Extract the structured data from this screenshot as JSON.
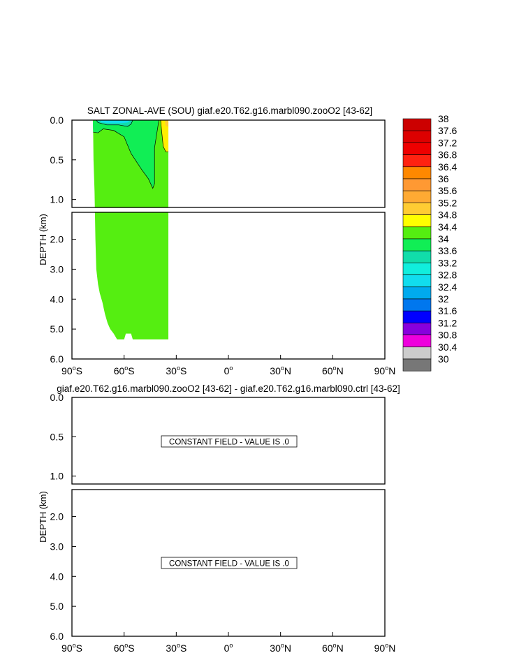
{
  "chart_data": [
    {
      "type": "heatmap",
      "title": "SALT ZONAL-AVE (SOU) giaf.e20.T62.g16.marbl090.zooO2 [43-62]",
      "ylabel": "DEPTH (km)",
      "xlim": [
        -90,
        90
      ],
      "ylim": [
        0,
        6
      ],
      "y_breakpoint_km": 1.1,
      "y_ticks": [
        {
          "label": "0.0",
          "value": 0.0
        },
        {
          "label": "0.5",
          "value": 0.5
        },
        {
          "label": "1.0",
          "value": 1.0
        },
        {
          "label": "2.0",
          "value": 2.0
        },
        {
          "label": "3.0",
          "value": 3.0
        },
        {
          "label": "4.0",
          "value": 4.0
        },
        {
          "label": "5.0",
          "value": 5.0
        },
        {
          "label": "6.0",
          "value": 6.0
        }
      ],
      "x_ticks": [
        {
          "deg": "90",
          "hemi": "S",
          "value": -90
        },
        {
          "deg": "60",
          "hemi": "S",
          "value": -60
        },
        {
          "deg": "30",
          "hemi": "S",
          "value": -30
        },
        {
          "deg": "0",
          "hemi": "",
          "value": 0
        },
        {
          "deg": "30",
          "hemi": "N",
          "value": 30
        },
        {
          "deg": "60",
          "hemi": "N",
          "value": 60
        },
        {
          "deg": "90",
          "hemi": "N",
          "value": 90
        }
      ],
      "ocean_mask": {
        "lat_north": -34.5,
        "bottom_profile": [
          {
            "lat": -78.0,
            "depth": 0.0
          },
          {
            "lat": -77.8,
            "depth": 0.15
          },
          {
            "lat": -77.6,
            "depth": 0.5
          },
          {
            "lat": -77.0,
            "depth": 0.9
          },
          {
            "lat": -76.5,
            "depth": 2.0
          },
          {
            "lat": -76.0,
            "depth": 3.0
          },
          {
            "lat": -75.0,
            "depth": 3.5
          },
          {
            "lat": -74.0,
            "depth": 3.8
          },
          {
            "lat": -72.5,
            "depth": 4.1
          },
          {
            "lat": -71.0,
            "depth": 4.5
          },
          {
            "lat": -69.5,
            "depth": 4.8
          },
          {
            "lat": -68.0,
            "depth": 5.0
          },
          {
            "lat": -66.0,
            "depth": 5.15
          },
          {
            "lat": -64.0,
            "depth": 5.35
          },
          {
            "lat": -60.0,
            "depth": 5.35
          },
          {
            "lat": -59.0,
            "depth": 5.15
          },
          {
            "lat": -56.0,
            "depth": 5.15
          },
          {
            "lat": -55.0,
            "depth": 5.35
          },
          {
            "lat": -34.5,
            "depth": 5.35
          }
        ]
      },
      "fill_regions": [
        {
          "name": "salinity-34.4-34.8",
          "color": "#55EE11",
          "points": [
            [
              -78,
              0
            ],
            [
              -34.5,
              0
            ],
            [
              -34.5,
              5.35
            ],
            [
              -78,
              5.35
            ]
          ]
        },
        {
          "name": "salinity-34.0-34.4",
          "color": "#11EE55",
          "points": [
            [
              -77,
              0
            ],
            [
              -78,
              0.02
            ],
            [
              -78,
              0.15
            ],
            [
              -75,
              0.16
            ],
            [
              -72,
              0.11
            ],
            [
              -66,
              0.13
            ],
            [
              -60,
              0.21
            ],
            [
              -56,
              0.42
            ],
            [
              -50,
              0.62
            ],
            [
              -46,
              0.74
            ],
            [
              -43.5,
              0.86
            ],
            [
              -42.5,
              0.8
            ],
            [
              -42.5,
              0.35
            ],
            [
              -40,
              0.0
            ]
          ]
        },
        {
          "name": "salinity-33.6-34.0",
          "color": "#11DDAA",
          "points": [
            [
              -76,
              0
            ],
            [
              -75,
              0.03
            ],
            [
              -70,
              0.06
            ],
            [
              -63,
              0.06
            ],
            [
              -58,
              0.08
            ],
            [
              -56,
              0.05
            ],
            [
              -55,
              0.0
            ]
          ]
        },
        {
          "name": "salinity-33.2-33.6",
          "color": "#11DDEE",
          "points": [
            [
              -74,
              0
            ],
            [
              -73,
              0.03
            ],
            [
              -68,
              0.04
            ],
            [
              -62,
              0.04
            ],
            [
              -58,
              0.03
            ],
            [
              -56,
              0.0
            ]
          ]
        },
        {
          "name": "salinity-34.8-35.2",
          "color": "#FFEE00",
          "points": [
            [
              -39,
              0
            ],
            [
              -38.5,
              0.12
            ],
            [
              -37.5,
              0.33
            ],
            [
              -36,
              0.4
            ],
            [
              -34.5,
              0.4
            ],
            [
              -34.5,
              0.0
            ]
          ]
        },
        {
          "name": "salinity-35.2-35.6",
          "color": "#FFCC33",
          "points": [
            [
              -36.5,
              0
            ],
            [
              -36.3,
              0.06
            ],
            [
              -35.5,
              0.08
            ],
            [
              -34.5,
              0.08
            ],
            [
              -34.5,
              0.0
            ]
          ]
        }
      ],
      "contour_lines": [
        [
          [
            -78,
            0.15
          ],
          [
            -75,
            0.16
          ],
          [
            -72,
            0.11
          ],
          [
            -66,
            0.13
          ],
          [
            -60,
            0.21
          ],
          [
            -56,
            0.42
          ],
          [
            -50,
            0.62
          ],
          [
            -46,
            0.74
          ],
          [
            -43.5,
            0.86
          ],
          [
            -42.5,
            0.8
          ],
          [
            -42.5,
            0.35
          ],
          [
            -40,
            0.0
          ]
        ],
        [
          [
            -76,
            0
          ],
          [
            -75,
            0.03
          ],
          [
            -70,
            0.06
          ],
          [
            -63,
            0.06
          ],
          [
            -58,
            0.08
          ],
          [
            -56,
            0.05
          ],
          [
            -55,
            0.0
          ]
        ],
        [
          [
            -39,
            0
          ],
          [
            -38.5,
            0.12
          ],
          [
            -37.5,
            0.33
          ],
          [
            -36,
            0.4
          ],
          [
            -34.5,
            0.4
          ]
        ]
      ],
      "colorbar": {
        "levels": [
          "38",
          "37.6",
          "37.2",
          "36.8",
          "36.4",
          "36",
          "35.6",
          "35.2",
          "34.8",
          "34.4",
          "34",
          "33.6",
          "33.2",
          "32.8",
          "32.4",
          "32",
          "31.6",
          "31.2",
          "30.8",
          "30.4",
          "30"
        ],
        "colors": [
          "#CC0000",
          "#DD0000",
          "#EE0000",
          "#FF2211",
          "#FF8800",
          "#FF9933",
          "#FFAA33",
          "#FFCC33",
          "#FFFF00",
          "#55EE11",
          "#11EE55",
          "#11DDAA",
          "#11EEDD",
          "#11DDEE",
          "#00AAEE",
          "#0077EE",
          "#0000FF",
          "#8800DD",
          "#EE00DD",
          "#CCCCCC",
          "#777777"
        ]
      }
    },
    {
      "type": "heatmap",
      "title": "giaf.e20.T62.g16.marbl090.zooO2 [43-62] - giaf.e20.T62.g16.marbl090.ctrl [43-62]",
      "ylabel": "DEPTH (km)",
      "xlim": [
        -90,
        90
      ],
      "ylim": [
        0,
        6
      ],
      "y_breakpoint_km": 1.1,
      "y_ticks": [
        {
          "label": "0.0",
          "value": 0.0
        },
        {
          "label": "0.5",
          "value": 0.5
        },
        {
          "label": "1.0",
          "value": 1.0
        },
        {
          "label": "2.0",
          "value": 2.0
        },
        {
          "label": "3.0",
          "value": 3.0
        },
        {
          "label": "4.0",
          "value": 4.0
        },
        {
          "label": "5.0",
          "value": 5.0
        },
        {
          "label": "6.0",
          "value": 6.0
        }
      ],
      "x_ticks": [
        {
          "deg": "90",
          "hemi": "S",
          "value": -90
        },
        {
          "deg": "60",
          "hemi": "S",
          "value": -60
        },
        {
          "deg": "30",
          "hemi": "S",
          "value": -30
        },
        {
          "deg": "0",
          "hemi": "",
          "value": 0
        },
        {
          "deg": "30",
          "hemi": "N",
          "value": 30
        },
        {
          "deg": "60",
          "hemi": "N",
          "value": 60
        },
        {
          "deg": "90",
          "hemi": "N",
          "value": 90
        }
      ],
      "annotations": [
        "CONSTANT FIELD - VALUE IS .0",
        "CONSTANT FIELD - VALUE IS .0"
      ]
    }
  ]
}
